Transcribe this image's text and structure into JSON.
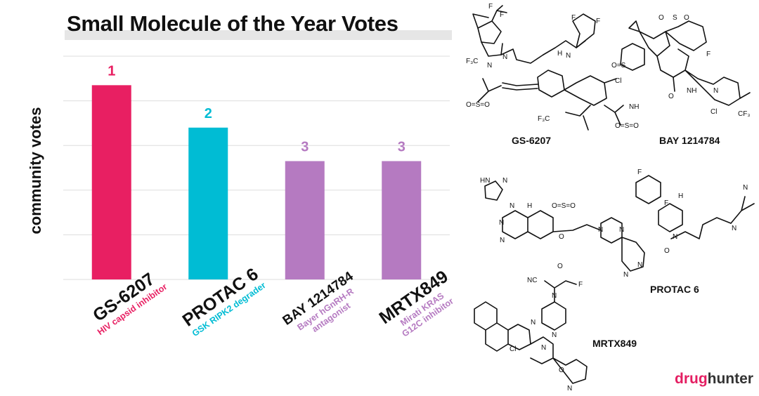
{
  "title": "Small Molecule of the Year Votes",
  "chart_data": {
    "type": "bar",
    "ylabel": "community votes",
    "ylim": [
      0,
      100
    ],
    "grid": true,
    "bars": [
      {
        "name": "GS-6207",
        "subtitle": "HIV capsid inhibitor",
        "rank": "1",
        "value": 87,
        "color": "#e81f62"
      },
      {
        "name": "PROTAC 6",
        "subtitle": "GSK RIPK2 degrader",
        "rank": "2",
        "value": 68,
        "color": "#00bcd4"
      },
      {
        "name": "BAY 1214784",
        "subtitle": "Bayer hGnRH-R antagonist",
        "rank": "3",
        "value": 53,
        "color": "#b57ac1"
      },
      {
        "name": "MRTX849",
        "subtitle": "Mirati KRAS G12C inhibitor",
        "rank": "3",
        "value": 53,
        "color": "#b57ac1"
      }
    ]
  },
  "structures": [
    {
      "name": "GS-6207"
    },
    {
      "name": "BAY 1214784"
    },
    {
      "name": "PROTAC 6"
    },
    {
      "name": "MRTX849"
    }
  ],
  "brand": {
    "part1": "drug",
    "part2": "hunter",
    "color1": "#e41e62",
    "color2": "#333333"
  }
}
